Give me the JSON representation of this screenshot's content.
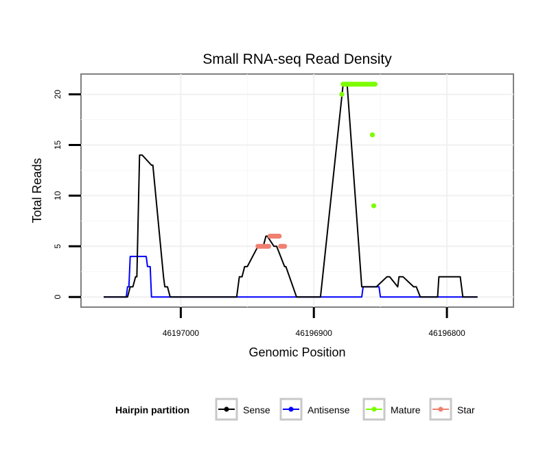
{
  "chart_data": {
    "type": "line",
    "title": "Small RNA-seq Read Density",
    "xlabel": "Genomic Position",
    "ylabel": "Total Reads",
    "xlim": [
      46197075,
      46196750
    ],
    "x_reversed": true,
    "ylim": [
      -1,
      22
    ],
    "x_ticks": [
      46197000,
      46196900,
      46196800
    ],
    "x_tick_labels": [
      "46197000",
      "46196900",
      "46196800"
    ],
    "y_ticks": [
      0,
      5,
      10,
      15,
      20
    ],
    "y_tick_labels": [
      "0",
      "5",
      "10",
      "15",
      "20"
    ],
    "grid": true,
    "legend": {
      "title": "Hairpin partition",
      "position": "bottom",
      "entries": [
        {
          "name": "Sense",
          "color": "#000000"
        },
        {
          "name": "Antisense",
          "color": "#0000ff"
        },
        {
          "name": "Mature",
          "color": "#7cfc00"
        },
        {
          "name": "Star",
          "color": "#f08070"
        }
      ]
    },
    "series": [
      {
        "name": "Sense",
        "color": "#000000",
        "style": "line",
        "x": [
          46197058,
          46197040,
          46197038,
          46197036,
          46197034,
          46197033,
          46197031,
          46197029,
          46197022,
          46197021,
          46197013,
          46197012,
          46197010,
          46197008,
          46197000,
          46196999,
          46196958,
          46196956,
          46196954,
          46196952,
          46196950,
          46196942,
          46196941,
          46196940,
          46196938,
          46196936,
          46196935,
          46196930,
          46196928,
          46196922,
          46196921,
          46196913,
          46196913,
          46196911,
          46196907,
          46196903,
          46196903,
          46196901,
          46196900,
          46196896,
          46196896,
          46196895,
          46196878,
          46196875,
          46196864,
          46196863,
          46196855,
          46196853,
          46196845,
          46196843,
          46196837,
          46196836,
          46196833,
          46196825,
          46196823,
          46196820,
          46196807,
          46196806,
          46196790,
          46196788,
          46196777
        ],
        "y": [
          0,
          0,
          1,
          1,
          2,
          2,
          14,
          14,
          13,
          13,
          2,
          1,
          1,
          0,
          0,
          0,
          0,
          2,
          2,
          3,
          3,
          5,
          5,
          5,
          5,
          6,
          6,
          5,
          5,
          3,
          3,
          0,
          0,
          0,
          0,
          0,
          0,
          0,
          0,
          0,
          0,
          0,
          21,
          21,
          1,
          1,
          1,
          1,
          2,
          2,
          1,
          2,
          2,
          1,
          1,
          0,
          0,
          2,
          2,
          0,
          0
        ]
      },
      {
        "name": "Antisense",
        "color": "#0000ff",
        "style": "line",
        "x": [
          46197058,
          46197041,
          46197040,
          46197039,
          46197038,
          46197026,
          46197025,
          46197023,
          46197022,
          46196996,
          46196999,
          46196940,
          46196938,
          46196913,
          46196912,
          46196911,
          46196909,
          46196903,
          46196864,
          46196863,
          46196862,
          46196851,
          46196850,
          46196777
        ],
        "y": [
          0,
          0,
          1,
          1,
          4,
          4,
          3,
          3,
          0,
          0,
          0,
          0,
          0,
          0,
          0,
          0,
          0,
          0,
          0,
          1,
          1,
          1,
          0,
          0
        ]
      },
      {
        "name": "Mature",
        "color": "#7cfc00",
        "style": "points",
        "x": [
          46196878,
          46196877,
          46196876,
          46196875,
          46196874,
          46196873,
          46196872,
          46196871,
          46196870,
          46196869,
          46196868,
          46196867,
          46196866,
          46196865,
          46196864,
          46196863,
          46196862,
          46196861,
          46196860,
          46196859,
          46196858,
          46196857,
          46196856,
          46196855,
          46196854,
          46196879,
          46196856,
          46196855
        ],
        "y": [
          21,
          21,
          21,
          21,
          21,
          21,
          21,
          21,
          21,
          21,
          21,
          21,
          21,
          21,
          21,
          21,
          21,
          21,
          21,
          21,
          21,
          21,
          21,
          21,
          21,
          20,
          16,
          9
        ]
      },
      {
        "name": "Star",
        "color": "#f08070",
        "style": "points",
        "x": [
          46196942,
          46196941,
          46196940,
          46196939,
          46196938,
          46196937,
          46196936,
          46196935,
          46196934,
          46196933,
          46196932,
          46196931,
          46196930,
          46196929,
          46196928,
          46196927,
          46196926,
          46196925,
          46196924,
          46196923,
          46196922
        ],
        "y": [
          5,
          5,
          5,
          5,
          5,
          5,
          5,
          5,
          5,
          6,
          6,
          6,
          6,
          6,
          6,
          6,
          6,
          5,
          5,
          5,
          5
        ]
      }
    ]
  }
}
